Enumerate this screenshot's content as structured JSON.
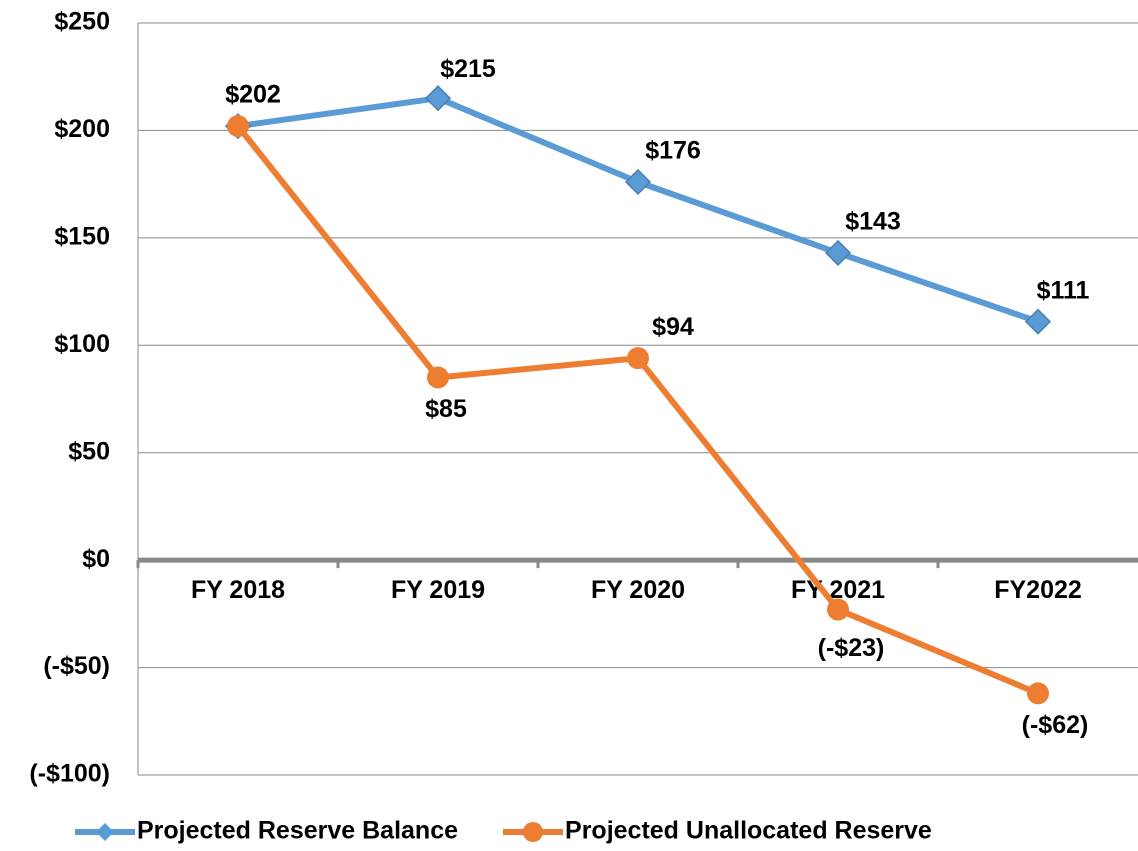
{
  "chart_data": {
    "type": "line",
    "categories": [
      "FY 2018",
      "FY 2019",
      "FY 2020",
      "FY 2021",
      "FY2022"
    ],
    "series": [
      {
        "name": "Projected Reserve Balance",
        "color": "#5b9bd5",
        "marker": "diamond",
        "values": [
          202,
          215,
          176,
          143,
          111
        ],
        "value_labels": [
          "$202",
          "$215",
          "$176",
          "$143",
          "$111"
        ]
      },
      {
        "name": "Projected Unallocated Reserve",
        "color": "#ed7d31",
        "marker": "circle",
        "values": [
          202,
          85,
          94,
          -23,
          -62
        ],
        "value_labels": [
          "$202",
          "$85",
          "$94",
          "(-$23)",
          "(-$62)"
        ]
      }
    ],
    "ylim": [
      -100,
      250
    ],
    "yticks": [
      {
        "value": -100,
        "label": "(-$100)"
      },
      {
        "value": -50,
        "label": "(-$50)"
      },
      {
        "value": 0,
        "label": "$0"
      },
      {
        "value": 50,
        "label": "$50"
      },
      {
        "value": 100,
        "label": "$100"
      },
      {
        "value": 150,
        "label": "$150"
      },
      {
        "value": 200,
        "label": "$200"
      },
      {
        "value": 250,
        "label": "$250"
      }
    ],
    "grid": true,
    "legend": "bottom"
  }
}
